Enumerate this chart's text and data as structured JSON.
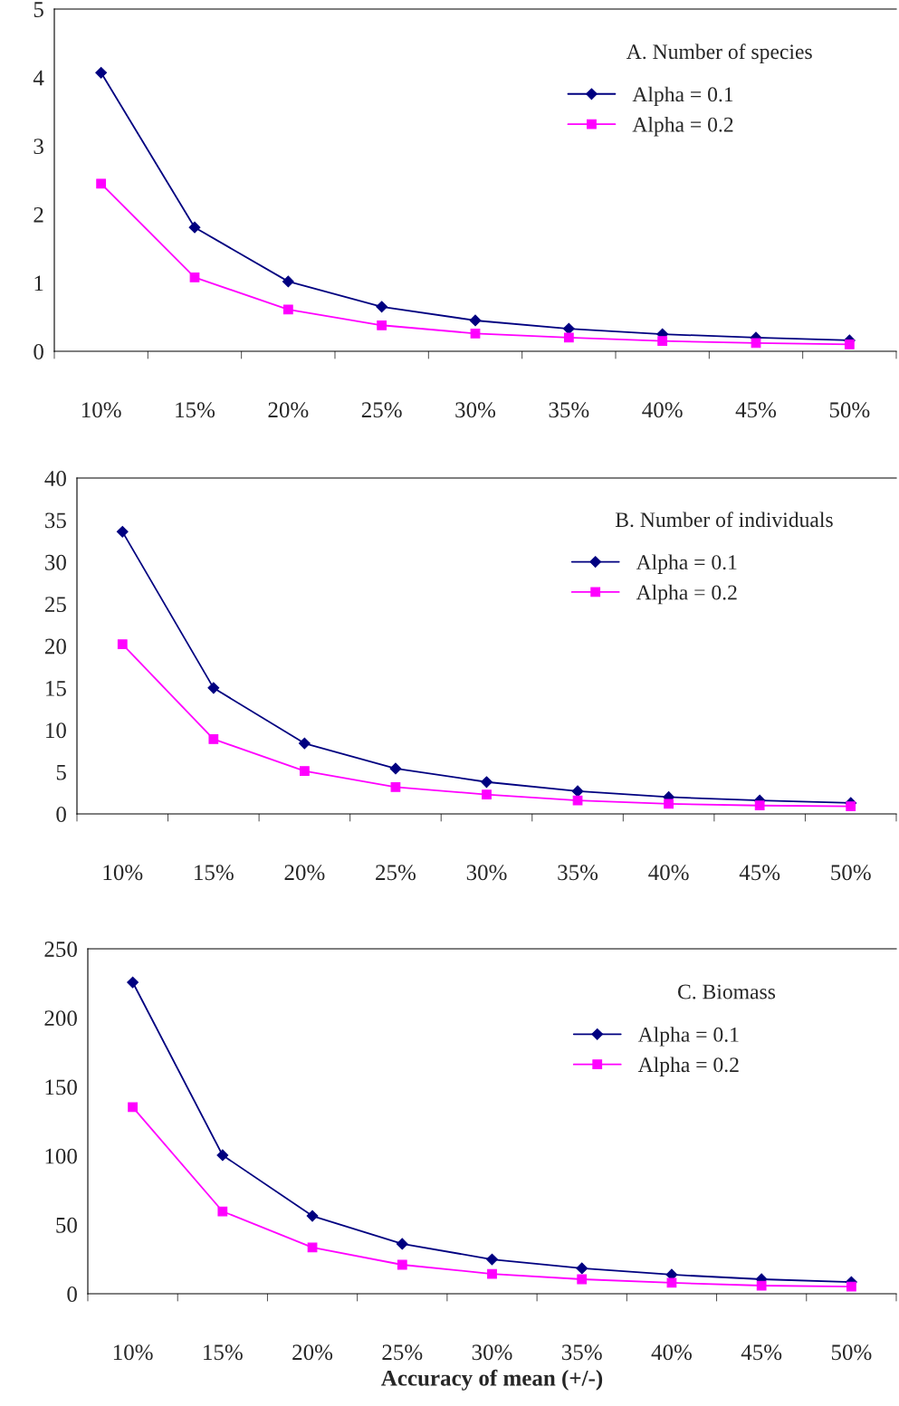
{
  "chart_data": [
    {
      "type": "line",
      "title": "A. Number of species",
      "categories": [
        "10%",
        "15%",
        "20%",
        "25%",
        "30%",
        "35%",
        "40%",
        "45%",
        "50%"
      ],
      "ylim": [
        0,
        5
      ],
      "yticks": [
        0,
        1,
        2,
        3,
        4,
        5
      ],
      "grid": false,
      "legend": "top right",
      "series": [
        {
          "name": "Alpha = 0.1",
          "color": "#000080",
          "marker": "diamond",
          "values": [
            4.07,
            1.81,
            1.02,
            0.65,
            0.45,
            0.33,
            0.25,
            0.2,
            0.16
          ]
        },
        {
          "name": "Alpha = 0.2",
          "color": "#ff00ff",
          "marker": "square",
          "values": [
            2.45,
            1.08,
            0.61,
            0.38,
            0.26,
            0.2,
            0.15,
            0.12,
            0.1
          ]
        }
      ]
    },
    {
      "type": "line",
      "title": "B. Number of individuals",
      "categories": [
        "10%",
        "15%",
        "20%",
        "25%",
        "30%",
        "35%",
        "40%",
        "45%",
        "50%"
      ],
      "ylim": [
        0,
        40
      ],
      "yticks": [
        0,
        5,
        10,
        15,
        20,
        25,
        30,
        35,
        40
      ],
      "grid": false,
      "legend": "top right",
      "series": [
        {
          "name": "Alpha = 0.1",
          "color": "#000080",
          "marker": "diamond",
          "values": [
            33.6,
            15.0,
            8.4,
            5.4,
            3.8,
            2.7,
            2.0,
            1.6,
            1.3
          ]
        },
        {
          "name": "Alpha = 0.2",
          "color": "#ff00ff",
          "marker": "square",
          "values": [
            20.2,
            8.9,
            5.1,
            3.2,
            2.3,
            1.6,
            1.2,
            1.0,
            0.9
          ]
        }
      ]
    },
    {
      "type": "line",
      "title": "C. Biomass",
      "xlabel": "Accuracy of mean (+/-)",
      "categories": [
        "10%",
        "15%",
        "20%",
        "25%",
        "30%",
        "35%",
        "40%",
        "45%",
        "50%"
      ],
      "ylim": [
        0,
        250
      ],
      "yticks": [
        0,
        50,
        100,
        150,
        200,
        250
      ],
      "grid": false,
      "legend": "top right",
      "series": [
        {
          "name": "Alpha = 0.1",
          "color": "#000080",
          "marker": "diamond",
          "values": [
            225.7,
            100.4,
            56.4,
            36.1,
            24.9,
            18.4,
            13.8,
            10.5,
            8.5
          ]
        },
        {
          "name": "Alpha = 0.2",
          "color": "#ff00ff",
          "marker": "square",
          "values": [
            135.2,
            59.7,
            33.5,
            21.0,
            14.4,
            10.5,
            7.9,
            5.9,
            5.2
          ]
        }
      ]
    }
  ]
}
